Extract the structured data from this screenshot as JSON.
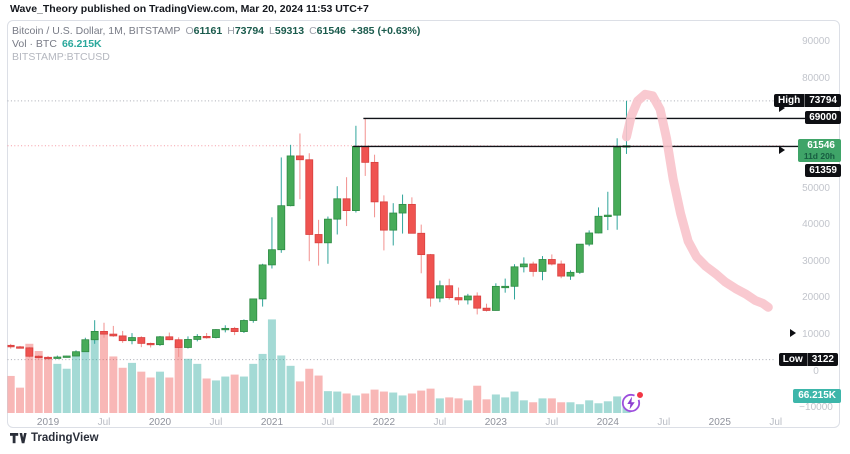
{
  "attribution": "Wave_Theory published on TradingView.com, Mar 20, 2024 11:53 UTC+7",
  "legend": {
    "title": "Bitcoin / U.S. Dollar, 1M, BITSTAMP",
    "ohlc": [
      {
        "k": "O",
        "v": "61161"
      },
      {
        "k": "H",
        "v": "73794"
      },
      {
        "k": "L",
        "v": "59313"
      },
      {
        "k": "C",
        "v": "61546"
      }
    ],
    "change": "+385 (+0.63%)",
    "vol_label": "Vol · BTC",
    "vol_value": "66.215K",
    "symbol": "BITSTAMP:BTCUSD"
  },
  "badges": {
    "high_label": "High",
    "high_value": "73794",
    "level_69000": "69000",
    "last_price": "61546",
    "countdown": "11d 20h",
    "level_61359": "61359",
    "low_label": "Low",
    "low_value": "3122",
    "volume": "66.215K"
  },
  "footer": {
    "brand": "TradingView"
  },
  "boost": {
    "name": "boost-lightning"
  },
  "price_scale": {
    "ticks": [
      {
        "p": 90000,
        "label": "90000"
      },
      {
        "p": 80000,
        "label": "80000"
      },
      {
        "p": 50000,
        "label": "50000"
      },
      {
        "p": 40000,
        "label": "40000"
      },
      {
        "p": 30000,
        "label": "30000"
      },
      {
        "p": 20000,
        "label": "20000"
      },
      {
        "p": 10000,
        "label": "10000",
        "arrow": true
      },
      {
        "p": 0,
        "label": "0"
      },
      {
        "p": -10000,
        "label": "−10000"
      }
    ]
  },
  "time_scale": {
    "ticks": [
      {
        "label": "2019",
        "m": 4,
        "kind": "year"
      },
      {
        "label": "Jul",
        "m": 10,
        "kind": "month"
      },
      {
        "label": "2020",
        "m": 16,
        "kind": "year"
      },
      {
        "label": "Jul",
        "m": 22,
        "kind": "month"
      },
      {
        "label": "2021",
        "m": 28,
        "kind": "year"
      },
      {
        "label": "Jul",
        "m": 34,
        "kind": "month"
      },
      {
        "label": "2022",
        "m": 40,
        "kind": "year"
      },
      {
        "label": "Jul",
        "m": 46,
        "kind": "month"
      },
      {
        "label": "2023",
        "m": 52,
        "kind": "year"
      },
      {
        "label": "Jul",
        "m": 58,
        "kind": "month"
      },
      {
        "label": "2024",
        "m": 64,
        "kind": "year"
      },
      {
        "label": "Jul",
        "m": 70,
        "kind": "month"
      },
      {
        "label": "2025",
        "m": 76,
        "kind": "year"
      },
      {
        "label": "Jul",
        "m": 82,
        "kind": "month"
      }
    ]
  },
  "chart_data": {
    "type": "candlestick+volume",
    "title": "Bitcoin / U.S. Dollar",
    "symbol": "BITSTAMP:BTCUSD",
    "timeframe": "1M",
    "ylim": [
      -10000,
      95000
    ],
    "high_marker": 73794,
    "low_marker": 3122,
    "horizontal_rays": [
      {
        "price": 69000,
        "from_month": "2021-11"
      },
      {
        "price": 61359,
        "from_month": "2021-10"
      }
    ],
    "last_price_line": 61546,
    "columns": [
      "month",
      "open",
      "high",
      "low",
      "close",
      "volume_kBTC"
    ],
    "candles": [
      [
        "2018-09",
        7010,
        7410,
        6100,
        6600,
        190
      ],
      [
        "2018-10",
        6600,
        6850,
        6200,
        6320,
        130
      ],
      [
        "2018-11",
        6320,
        6540,
        3650,
        4040,
        355
      ],
      [
        "2018-12",
        4040,
        4310,
        3122,
        3740,
        318
      ],
      [
        "2019-01",
        3740,
        4110,
        3350,
        3440,
        278
      ],
      [
        "2019-02",
        3440,
        4210,
        3330,
        3815,
        252
      ],
      [
        "2019-03",
        3815,
        4150,
        3670,
        4095,
        227
      ],
      [
        "2019-04",
        4095,
        5650,
        4050,
        5270,
        308
      ],
      [
        "2019-05",
        5270,
        9090,
        5200,
        8545,
        355
      ],
      [
        "2019-06",
        8545,
        13880,
        7430,
        10820,
        385
      ],
      [
        "2019-07",
        10820,
        13200,
        9080,
        10080,
        410
      ],
      [
        "2019-08",
        10080,
        12320,
        9350,
        9590,
        290
      ],
      [
        "2019-09",
        9590,
        10950,
        7700,
        8290,
        232
      ],
      [
        "2019-10",
        8290,
        10350,
        7300,
        9140,
        257
      ],
      [
        "2019-11",
        9140,
        9500,
        6515,
        7545,
        212
      ],
      [
        "2019-12",
        7545,
        7750,
        6425,
        7195,
        182
      ],
      [
        "2020-01",
        7195,
        9570,
        6850,
        9350,
        212
      ],
      [
        "2020-02",
        9350,
        10500,
        8400,
        8545,
        182
      ],
      [
        "2020-03",
        8545,
        9200,
        3850,
        6425,
        355
      ],
      [
        "2020-04",
        6425,
        9460,
        6140,
        8620,
        278
      ],
      [
        "2020-05",
        8620,
        10070,
        8100,
        9455,
        252
      ],
      [
        "2020-06",
        9455,
        10380,
        8830,
        9140,
        177
      ],
      [
        "2020-07",
        9140,
        11450,
        8900,
        11325,
        167
      ],
      [
        "2020-08",
        11325,
        12490,
        10550,
        11645,
        187
      ],
      [
        "2020-09",
        11645,
        12050,
        9810,
        10775,
        197
      ],
      [
        "2020-10",
        10775,
        14100,
        10380,
        13800,
        187
      ],
      [
        "2020-11",
        13800,
        19500,
        13200,
        19700,
        252
      ],
      [
        "2020-12",
        19700,
        29300,
        17600,
        28990,
        303
      ],
      [
        "2021-01",
        28990,
        42000,
        28000,
        33140,
        480
      ],
      [
        "2021-02",
        33140,
        58350,
        32300,
        45165,
        295
      ],
      [
        "2021-03",
        45165,
        61800,
        45000,
        58765,
        242
      ],
      [
        "2021-04",
        58765,
        64900,
        46930,
        57720,
        162
      ],
      [
        "2021-05",
        57720,
        59500,
        30000,
        37300,
        227
      ],
      [
        "2021-06",
        37300,
        41300,
        28800,
        35025,
        192
      ],
      [
        "2021-07",
        35025,
        42200,
        29300,
        41490,
        112
      ],
      [
        "2021-08",
        41490,
        50500,
        37300,
        47055,
        110
      ],
      [
        "2021-09",
        47055,
        52950,
        39600,
        43825,
        100
      ],
      [
        "2021-10",
        43825,
        67000,
        43300,
        61359,
        90
      ],
      [
        "2021-11",
        61359,
        69000,
        53300,
        57005,
        100
      ],
      [
        "2021-12",
        57005,
        59100,
        42000,
        46215,
        120
      ],
      [
        "2022-01",
        46215,
        47990,
        32950,
        38485,
        110
      ],
      [
        "2022-02",
        38485,
        45850,
        34300,
        43160,
        105
      ],
      [
        "2022-03",
        43160,
        48200,
        37550,
        45525,
        90
      ],
      [
        "2022-04",
        45525,
        47450,
        37600,
        37630,
        100
      ],
      [
        "2022-05",
        37630,
        40000,
        26700,
        31795,
        115
      ],
      [
        "2022-06",
        31795,
        31980,
        17590,
        19925,
        125
      ],
      [
        "2022-07",
        19925,
        24700,
        18800,
        23295,
        75
      ],
      [
        "2022-08",
        23295,
        25200,
        19520,
        20050,
        80
      ],
      [
        "2022-09",
        20050,
        22800,
        18100,
        19425,
        75
      ],
      [
        "2022-10",
        19425,
        21080,
        18190,
        20490,
        65
      ],
      [
        "2022-11",
        20490,
        21480,
        15460,
        17165,
        140
      ],
      [
        "2022-12",
        17165,
        18390,
        16250,
        16540,
        70
      ],
      [
        "2023-01",
        16540,
        23960,
        16490,
        23125,
        95
      ],
      [
        "2023-02",
        23125,
        25250,
        21400,
        23140,
        80
      ],
      [
        "2023-03",
        23140,
        29180,
        19550,
        28465,
        110
      ],
      [
        "2023-04",
        28465,
        31050,
        26940,
        29235,
        65
      ],
      [
        "2023-05",
        29235,
        29870,
        25800,
        27210,
        55
      ],
      [
        "2023-06",
        27210,
        31400,
        24800,
        30470,
        75
      ],
      [
        "2023-07",
        30470,
        31850,
        28850,
        29230,
        75
      ],
      [
        "2023-08",
        29230,
        30180,
        25350,
        25930,
        55
      ],
      [
        "2023-09",
        25930,
        27480,
        24900,
        26960,
        55
      ],
      [
        "2023-10",
        26960,
        34700,
        26550,
        34655,
        45
      ],
      [
        "2023-11",
        34655,
        38420,
        34100,
        37710,
        65
      ],
      [
        "2023-12",
        37710,
        44700,
        37600,
        42280,
        50
      ],
      [
        "2024-01",
        42280,
        48970,
        38500,
        42580,
        60
      ],
      [
        "2024-02",
        42580,
        63585,
        38600,
        61130,
        85
      ],
      [
        "2024-03",
        61161,
        73794,
        59313,
        61546,
        66.215
      ]
    ],
    "projection_curve": {
      "description": "hand-drawn pink forecast arc after last candle",
      "points_month_price": [
        [
          66.0,
          64000
        ],
        [
          66.5,
          69500
        ],
        [
          67.2,
          73800
        ],
        [
          68.0,
          75600
        ],
        [
          68.8,
          75200
        ],
        [
          69.6,
          71500
        ],
        [
          70.3,
          63500
        ],
        [
          71.0,
          52500
        ],
        [
          71.8,
          43000
        ],
        [
          72.6,
          35500
        ],
        [
          73.5,
          31200
        ],
        [
          74.5,
          28600
        ],
        [
          75.6,
          26500
        ],
        [
          76.6,
          24300
        ],
        [
          77.7,
          22500
        ],
        [
          78.8,
          21000
        ],
        [
          79.8,
          19300
        ],
        [
          80.6,
          18500
        ],
        [
          81.2,
          17400
        ]
      ]
    },
    "colors": {
      "up_body": "#47ab58",
      "up_border": "#2e8b44",
      "up_wick": "#2fa49a",
      "down_body": "#ef5350",
      "down_border": "#d8403f",
      "down_wick": "#f2918f",
      "vol_up": "rgba(38,166,154,0.42)",
      "vol_down": "rgba(239,83,80,0.42)",
      "projection": "#f8c3cb",
      "ray": "#101318",
      "high_low_dotted": "#a8abb4",
      "last_price_dotted": "#f59aa4",
      "badge_black": "#0e0f13",
      "badge_green": "#3fa468",
      "badge_teal": "#3db6aa",
      "boost_purple": "#8c3fd0",
      "notify_red": "#f23645"
    }
  }
}
